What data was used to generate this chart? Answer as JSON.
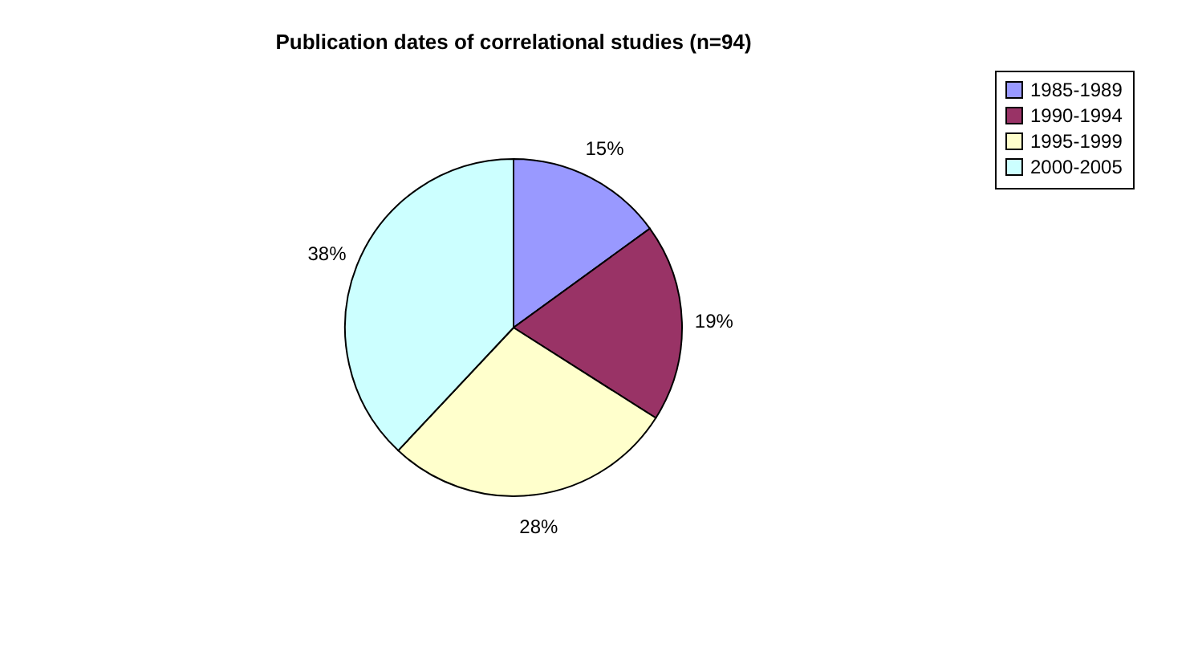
{
  "chart_data": {
    "type": "pie",
    "title": "Publication dates of correlational studies (n=94)",
    "categories": [
      "1985-1989",
      "1990-1994",
      "1995-1999",
      "2000-2005"
    ],
    "values": [
      15,
      19,
      28,
      38
    ],
    "colors": [
      "#9999ff",
      "#993366",
      "#ffffcc",
      "#ccffff"
    ],
    "value_labels": [
      "15%",
      "19%",
      "28%",
      "38%"
    ],
    "legend": "right"
  }
}
